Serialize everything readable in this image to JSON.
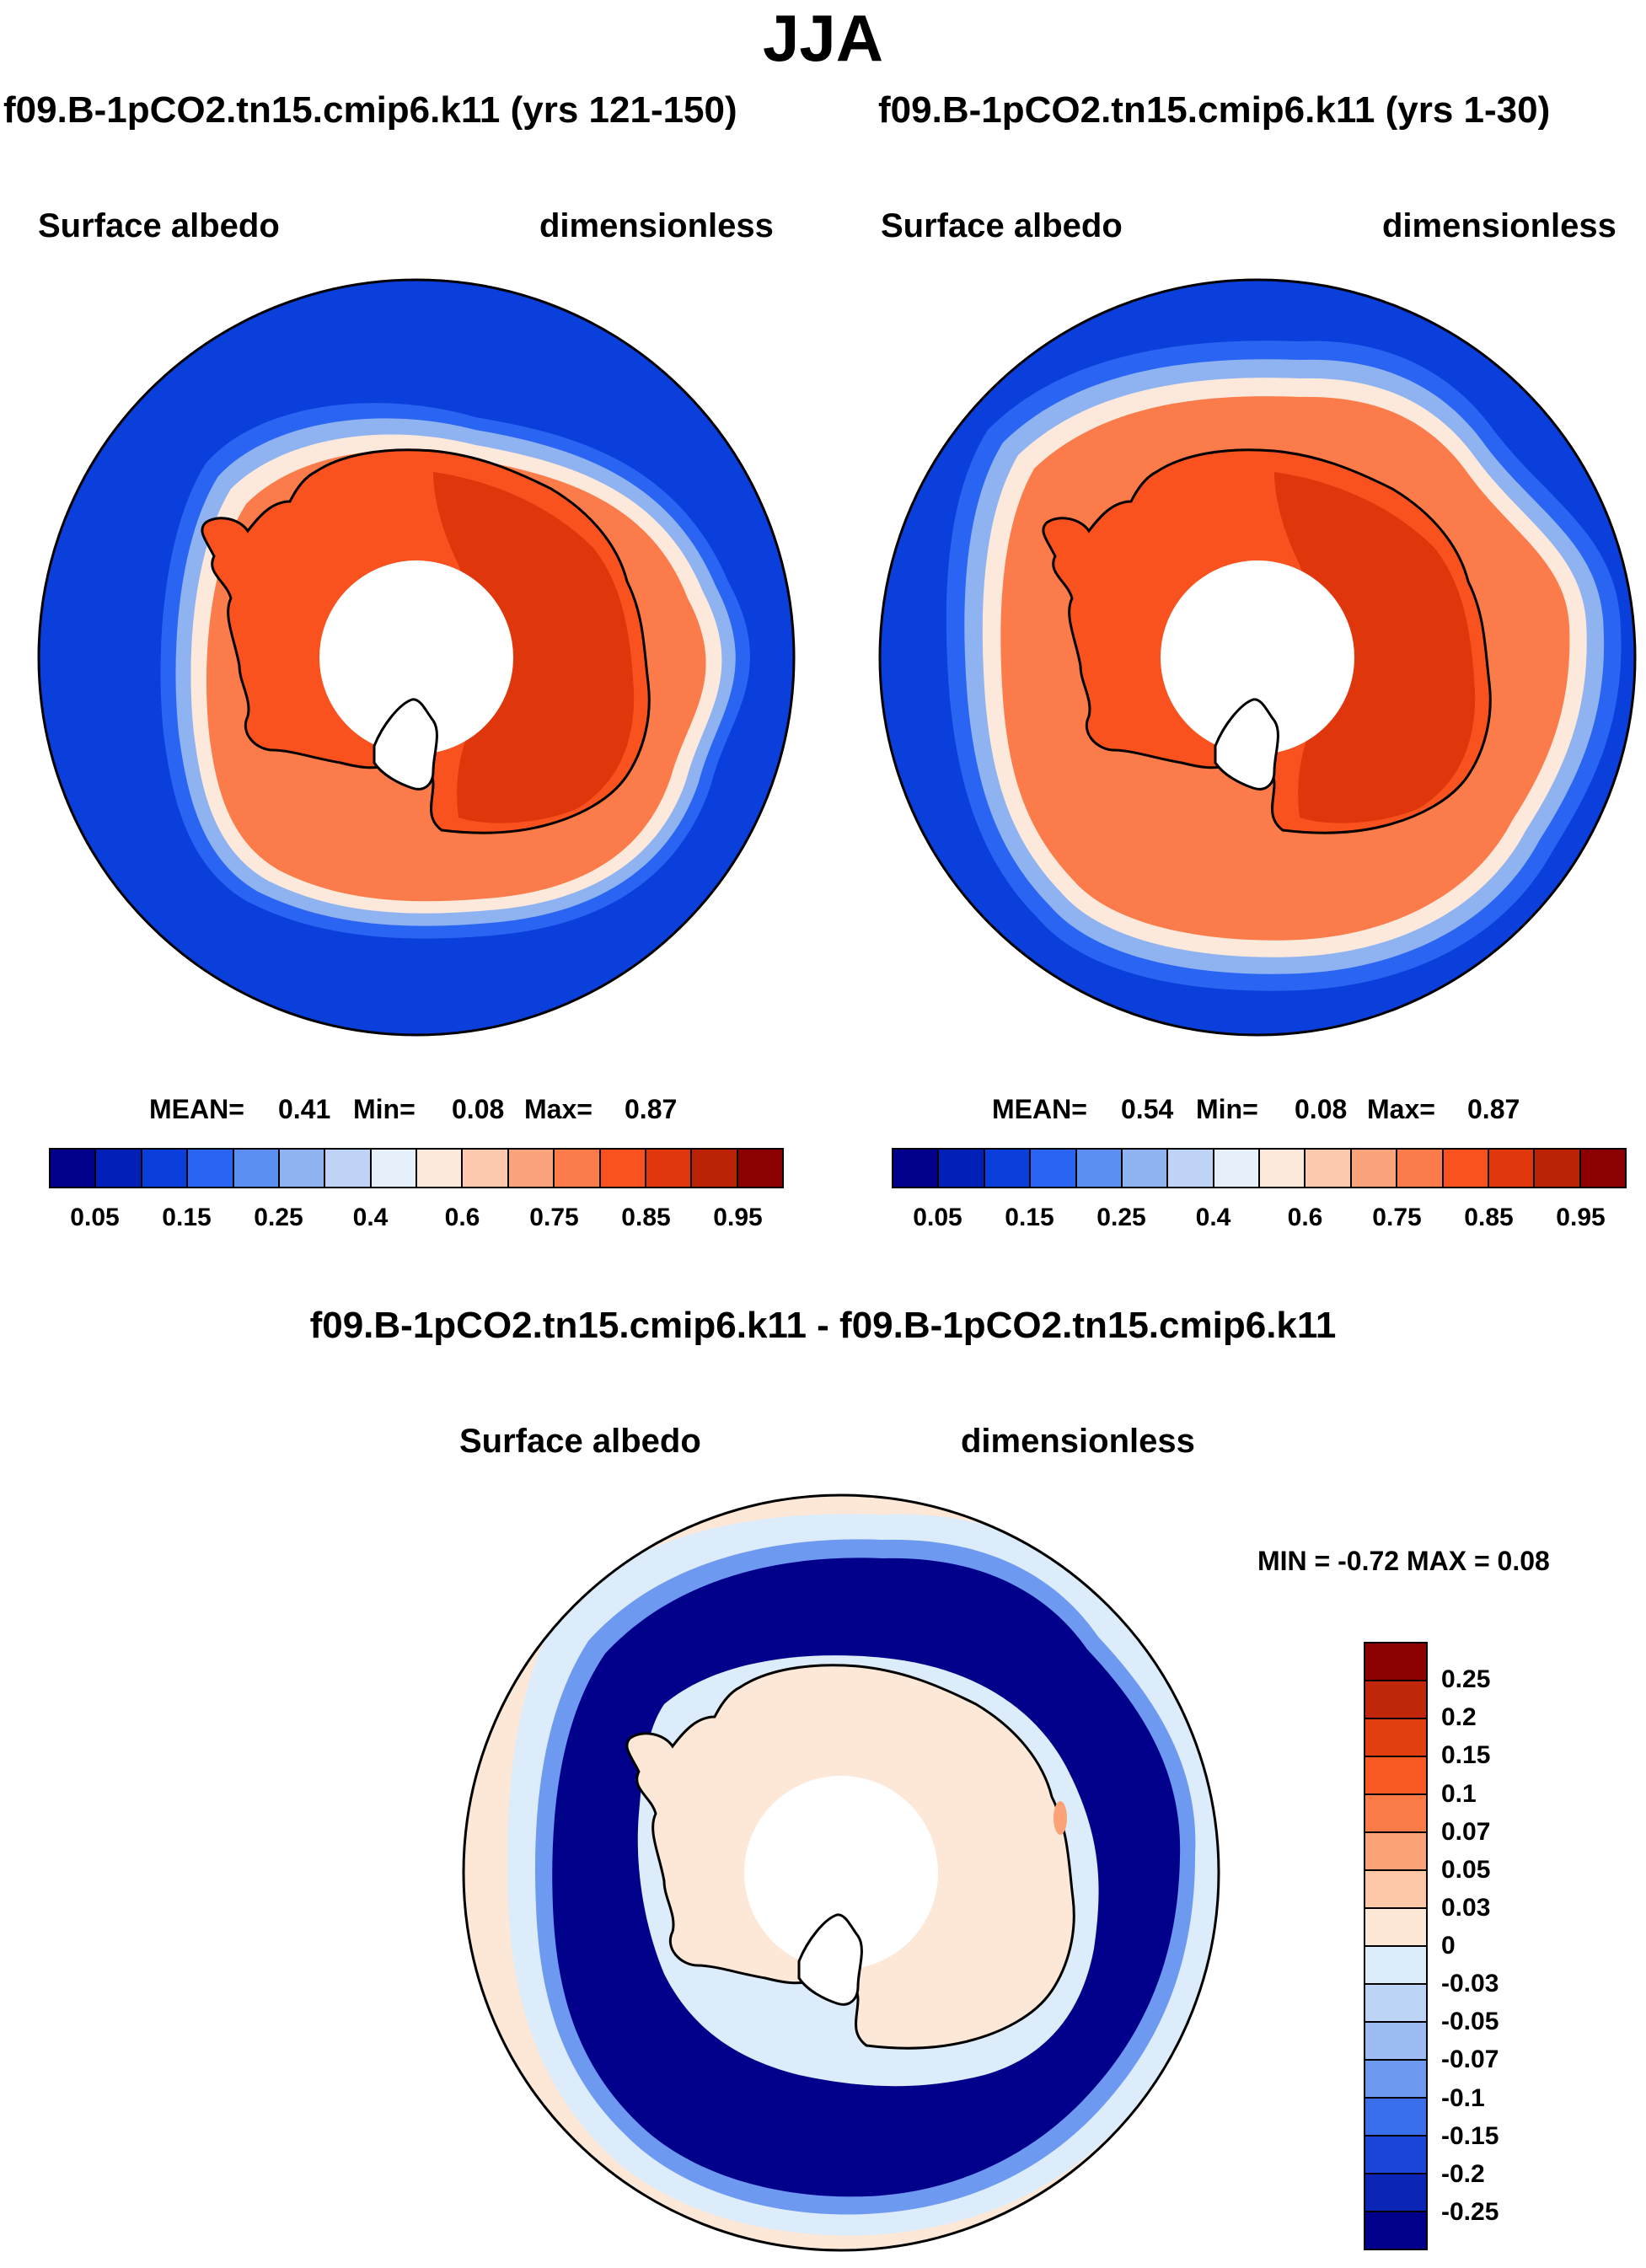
{
  "title": "JJA",
  "panels": [
    {
      "case": "f09.B-1pCO2.tn15.cmip6.k11 (yrs 121-150)",
      "field": "Surface albedo",
      "units": "dimensionless",
      "mean_label": "MEAN=",
      "mean": "0.41",
      "min_label": "Min=",
      "min": "0.08",
      "max_label": "Max=",
      "max": "0.87",
      "sea_ice_band": "narrow"
    },
    {
      "case": "f09.B-1pCO2.tn15.cmip6.k11 (yrs 1-30)",
      "field": "Surface albedo",
      "units": "dimensionless",
      "mean_label": "MEAN=",
      "mean": "0.54",
      "min_label": "Min=",
      "min": "0.08",
      "max_label": "Max=",
      "max": "0.87",
      "sea_ice_band": "wide"
    }
  ],
  "colorbar": {
    "tick_labels": [
      "0.05",
      "0.15",
      "0.25",
      "0.4",
      "0.6",
      "0.75",
      "0.85",
      "0.95"
    ],
    "colors": [
      "#00008b",
      "#0020b8",
      "#0a3fdc",
      "#2a64f2",
      "#5b8ff2",
      "#8fb2f0",
      "#bed3f5",
      "#e6f0fb",
      "#fde9dc",
      "#fcc9ae",
      "#fba37a",
      "#fb7c4a",
      "#f9521f",
      "#e0360c",
      "#bb2206",
      "#8b0000"
    ]
  },
  "difference": {
    "title": "f09.B-1pCO2.tn15.cmip6.k11 - f09.B-1pCO2.tn15.cmip6.k11",
    "field": "Surface albedo",
    "units": "dimensionless",
    "minmax": "MIN =  -0.72  MAX =   0.08",
    "colorbar": {
      "tick_labels": [
        "0.25",
        "0.2",
        "0.15",
        "0.1",
        "0.07",
        "0.05",
        "0.03",
        "0",
        "-0.03",
        "-0.05",
        "-0.07",
        "-0.1",
        "-0.15",
        "-0.2",
        "-0.25"
      ],
      "colors": [
        "#8b0000",
        "#c0260a",
        "#e23e10",
        "#f95a24",
        "#fb7b48",
        "#fca277",
        "#fdc8a8",
        "#fde8d8",
        "#dcecfb",
        "#bcd4f6",
        "#9cbcf3",
        "#6e99f0",
        "#3a6fec",
        "#1b45d8",
        "#0a24b5",
        "#00008b"
      ]
    }
  }
}
